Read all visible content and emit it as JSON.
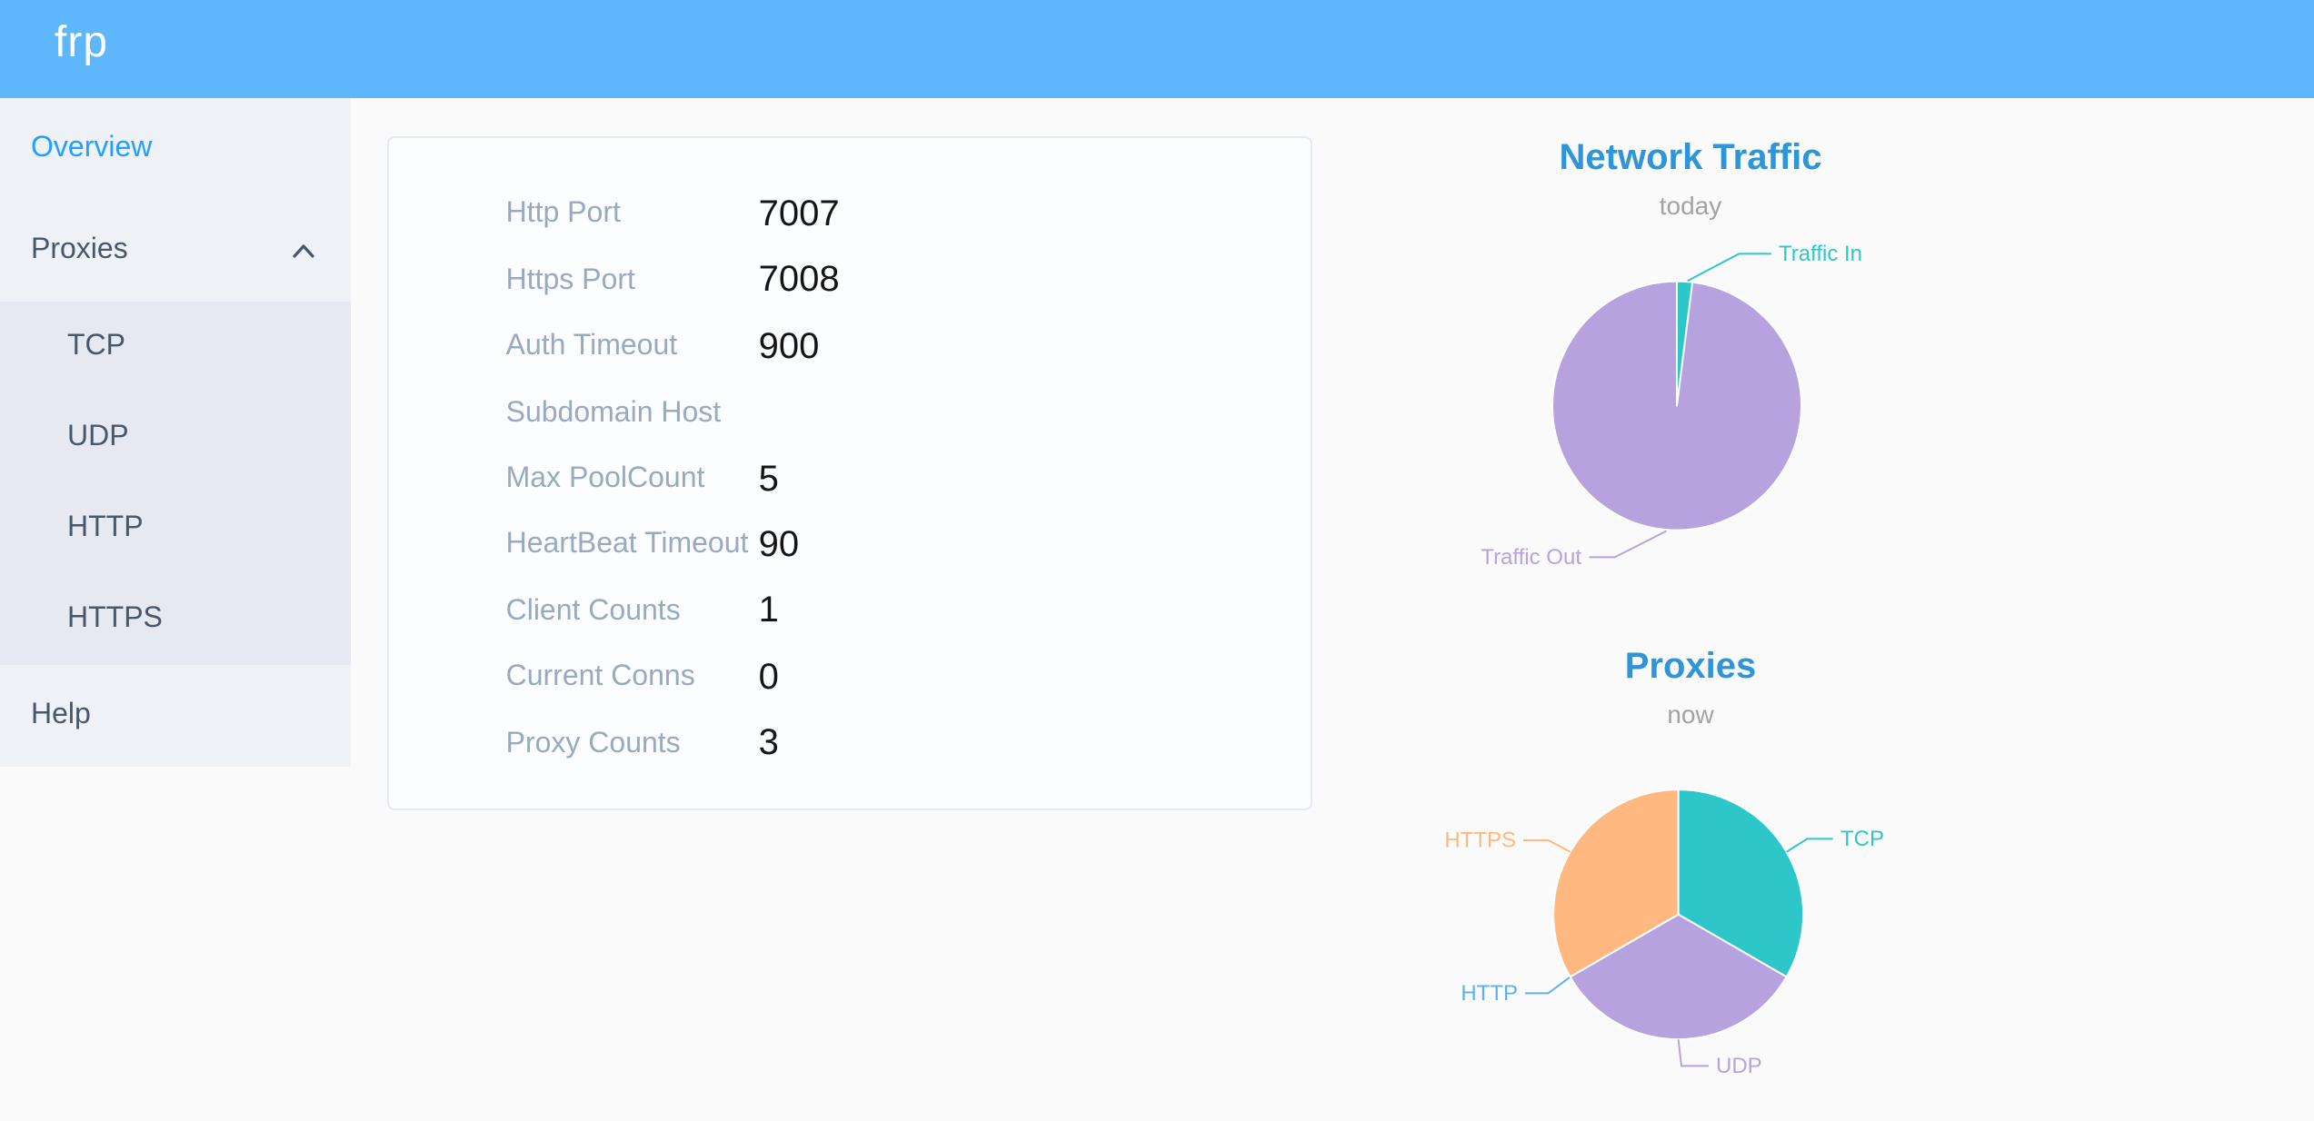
{
  "header": {
    "logo": "frp"
  },
  "sidebar": {
    "items": [
      {
        "label": "Overview",
        "active": true
      },
      {
        "label": "Proxies",
        "expanded": true
      },
      {
        "label": "TCP"
      },
      {
        "label": "UDP"
      },
      {
        "label": "HTTP"
      },
      {
        "label": "HTTPS"
      },
      {
        "label": "Help"
      }
    ]
  },
  "overview_card": {
    "rows": [
      {
        "label": "Http Port",
        "value": "7007"
      },
      {
        "label": "Https Port",
        "value": "7008"
      },
      {
        "label": "Auth Timeout",
        "value": "900"
      },
      {
        "label": "Subdomain Host",
        "value": ""
      },
      {
        "label": "Max PoolCount",
        "value": "5"
      },
      {
        "label": "HeartBeat Timeout",
        "value": "90"
      },
      {
        "label": "Client Counts",
        "value": "1"
      },
      {
        "label": "Current Conns",
        "value": "0"
      },
      {
        "label": "Proxy Counts",
        "value": "3"
      }
    ]
  },
  "chart_data": [
    {
      "type": "pie",
      "title": "Network Traffic",
      "subtitle": "today",
      "legend_position": "none",
      "start_angle": "top",
      "clockwise": true,
      "unit": "percent",
      "series": [
        {
          "name": "Traffic In",
          "value": 2,
          "color": "#2ec7c9"
        },
        {
          "name": "Traffic Out",
          "value": 98,
          "color": "#b6a2de"
        }
      ]
    },
    {
      "type": "pie",
      "title": "Proxies",
      "subtitle": "now",
      "legend_position": "none",
      "start_angle": "top",
      "clockwise": true,
      "unit": "count",
      "series": [
        {
          "name": "TCP",
          "value": 1,
          "color": "#2ec7c9"
        },
        {
          "name": "UDP",
          "value": 1,
          "color": "#b6a2de"
        },
        {
          "name": "HTTP",
          "value": 0,
          "color": "#5ab1ef"
        },
        {
          "name": "HTTPS",
          "value": 1,
          "color": "#ffb980"
        }
      ]
    }
  ],
  "colors": {
    "header_bg": "#5eb7fa",
    "sidebar_bg": "#eef1f6",
    "submenu_bg": "#e6e9f2",
    "active_link": "#20a0ff",
    "chart_title": "#2d95d8",
    "teal": "#2ec7c9",
    "purple": "#b6a2de",
    "blue": "#5ab1ef",
    "orange": "#ffb980"
  }
}
